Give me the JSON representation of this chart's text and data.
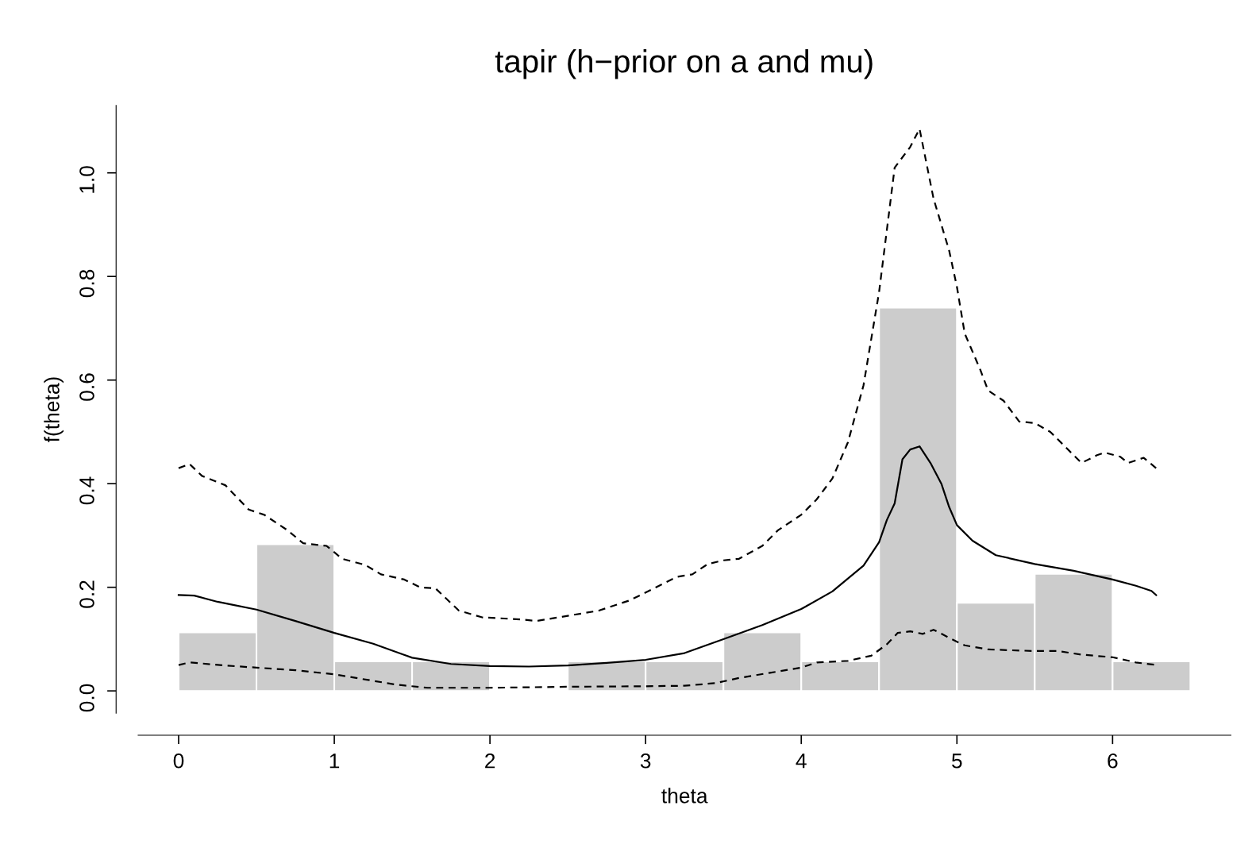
{
  "chart_data": {
    "type": "histogram",
    "title": "tapir (h−prior on a and mu)",
    "xlabel": "theta",
    "ylabel": "f(theta)",
    "bins": [
      0,
      0.5,
      1,
      1.5,
      2,
      2.5,
      3,
      3.5,
      4,
      4.5,
      5,
      5.5,
      6,
      6.5
    ],
    "values": [
      0.113,
      0.283,
      0.057,
      0.057,
      0,
      0.057,
      0.057,
      0.113,
      0.057,
      0.74,
      0.17,
      0.226,
      0.057
    ],
    "color": "#cccccc",
    "series": [
      {
        "type": "line",
        "line_style": "solid",
        "color": "#000000",
        "x": [
          0,
          0.1,
          0.25,
          0.5,
          0.75,
          1.0,
          1.25,
          1.5,
          1.75,
          2.0,
          2.25,
          2.5,
          2.75,
          3.0,
          3.25,
          3.5,
          3.75,
          4.0,
          4.2,
          4.4,
          4.5,
          4.55,
          4.6,
          4.65,
          4.7,
          4.76,
          4.83,
          4.9,
          4.95,
          5.0,
          5.1,
          5.25,
          5.5,
          5.75,
          6.0,
          6.15,
          6.25,
          6.28
        ],
        "values": [
          0.185,
          0.184,
          0.172,
          0.157,
          0.135,
          0.112,
          0.091,
          0.064,
          0.052,
          0.048,
          0.047,
          0.049,
          0.054,
          0.06,
          0.073,
          0.1,
          0.127,
          0.158,
          0.192,
          0.242,
          0.287,
          0.33,
          0.362,
          0.447,
          0.466,
          0.472,
          0.44,
          0.4,
          0.355,
          0.32,
          0.29,
          0.262,
          0.245,
          0.232,
          0.215,
          0.203,
          0.193,
          0.185
        ]
      },
      {
        "type": "line",
        "line_style": "dashed",
        "color": "#000000",
        "x": [
          0,
          0.07,
          0.15,
          0.3,
          0.45,
          0.55,
          0.7,
          0.8,
          0.95,
          1.05,
          1.2,
          1.3,
          1.45,
          1.55,
          1.65,
          1.8,
          1.95,
          2.2,
          2.3,
          2.5,
          2.7,
          2.9,
          3.0,
          3.2,
          3.3,
          3.4,
          3.5,
          3.6,
          3.75,
          3.85,
          4.0,
          4.1,
          4.2,
          4.3,
          4.4,
          4.5,
          4.6,
          4.7,
          4.76,
          4.85,
          4.95,
          5.0,
          5.05,
          5.15,
          5.2,
          5.3,
          5.4,
          5.5,
          5.6,
          5.7,
          5.8,
          5.9,
          5.95,
          6.05,
          6.1,
          6.2,
          6.28
        ],
        "values": [
          0.43,
          0.438,
          0.415,
          0.397,
          0.35,
          0.34,
          0.31,
          0.285,
          0.28,
          0.255,
          0.243,
          0.225,
          0.215,
          0.2,
          0.198,
          0.155,
          0.142,
          0.138,
          0.135,
          0.145,
          0.155,
          0.175,
          0.19,
          0.22,
          0.225,
          0.245,
          0.252,
          0.255,
          0.28,
          0.31,
          0.34,
          0.37,
          0.41,
          0.48,
          0.59,
          0.77,
          1.01,
          1.05,
          1.085,
          0.95,
          0.85,
          0.78,
          0.69,
          0.62,
          0.58,
          0.56,
          0.52,
          0.517,
          0.5,
          0.47,
          0.44,
          0.455,
          0.46,
          0.452,
          0.44,
          0.45,
          0.43
        ]
      },
      {
        "type": "line",
        "line_style": "dashed",
        "color": "#000000",
        "x": [
          0,
          0.07,
          0.3,
          0.5,
          0.75,
          1.0,
          1.2,
          1.4,
          1.6,
          2.0,
          2.5,
          3.0,
          3.25,
          3.45,
          3.6,
          3.8,
          4.0,
          4.1,
          4.3,
          4.45,
          4.55,
          4.62,
          4.7,
          4.78,
          4.85,
          5.0,
          5.05,
          5.2,
          5.5,
          5.65,
          5.8,
          6.0,
          6.15,
          6.28
        ],
        "values": [
          0.05,
          0.055,
          0.049,
          0.045,
          0.04,
          0.032,
          0.022,
          0.012,
          0.006,
          0.006,
          0.008,
          0.009,
          0.01,
          0.015,
          0.025,
          0.035,
          0.045,
          0.055,
          0.058,
          0.068,
          0.09,
          0.112,
          0.115,
          0.11,
          0.118,
          0.095,
          0.088,
          0.08,
          0.077,
          0.077,
          0.07,
          0.065,
          0.055,
          0.05
        ]
      }
    ],
    "xlim": [
      -0.26,
      6.76
    ],
    "ylim": [
      -0.043,
      1.13
    ],
    "xticks": [
      0,
      1,
      2,
      3,
      4,
      5,
      6
    ],
    "yticks": [
      {
        "value": 0,
        "label": "0.0"
      },
      0.2,
      0.4,
      0.6,
      0.8,
      {
        "value": 1,
        "label": "1.0"
      }
    ],
    "grid": false,
    "legend": false
  }
}
